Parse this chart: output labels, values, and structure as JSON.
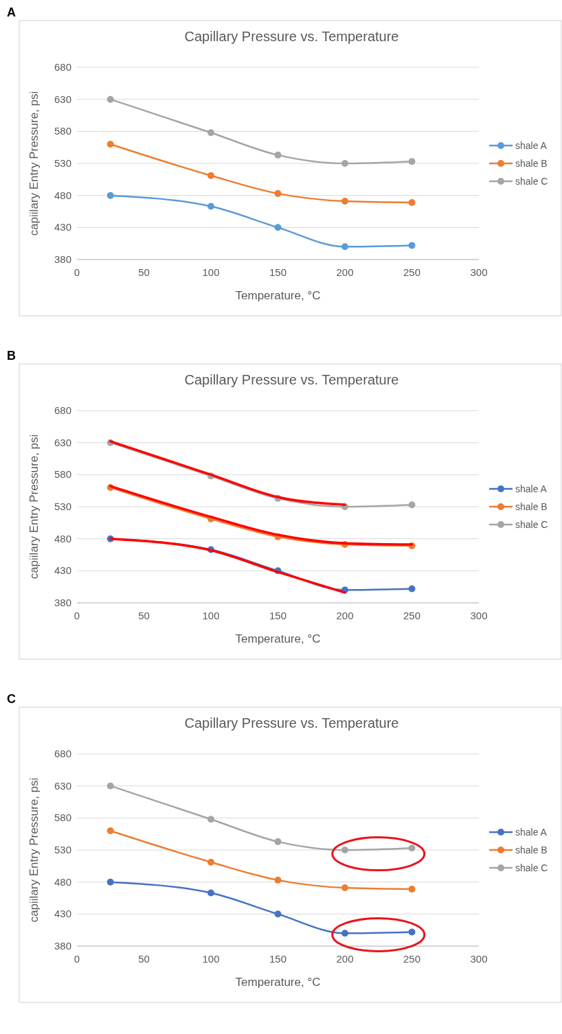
{
  "chart_data": [
    {
      "type": "line",
      "title": "Capillary Pressure vs. Temperature",
      "xlabel": "Temperature, °C",
      "ylabel": "capiilary Entry Pressure, psi",
      "annotations": [
        "A"
      ],
      "x": [
        25,
        100,
        150,
        200,
        250
      ],
      "xlim": [
        0,
        300
      ],
      "xticks": [
        0,
        50,
        100,
        150,
        200,
        250,
        300
      ],
      "ylim": [
        380,
        680
      ],
      "yticks": [
        380,
        430,
        480,
        530,
        580,
        630,
        680
      ],
      "grid": "y",
      "legend": "right",
      "marker": "circle",
      "line_style": "solid",
      "series": [
        {
          "name": "shale A",
          "color": "#5b9bd5",
          "values": [
            480,
            463,
            430,
            400,
            402
          ]
        },
        {
          "name": "shale B",
          "color": "#ed7d31",
          "values": [
            560,
            511,
            483,
            471,
            469
          ]
        },
        {
          "name": "shale C",
          "color": "#a5a5a5",
          "values": [
            630,
            578,
            543,
            530,
            533
          ]
        }
      ]
    },
    {
      "type": "line",
      "title": "Capillary Pressure vs. Temperature",
      "xlabel": "Temperature, °C",
      "ylabel": "capiilary Entry Pressure, psi",
      "annotations": [
        "B"
      ],
      "x": [
        25,
        100,
        150,
        200,
        250
      ],
      "xlim": [
        0,
        300
      ],
      "xticks": [
        0,
        50,
        100,
        150,
        200,
        250,
        300
      ],
      "ylim": [
        380,
        680
      ],
      "yticks": [
        380,
        430,
        480,
        530,
        580,
        630,
        680
      ],
      "grid": "y",
      "legend": "right",
      "marker": "circle",
      "line_style": "solid",
      "series": [
        {
          "name": "shale A",
          "color": "#4472c4",
          "values": [
            480,
            463,
            430,
            400,
            402
          ]
        },
        {
          "name": "shale B",
          "color": "#ed7d31",
          "values": [
            560,
            511,
            483,
            471,
            469
          ]
        },
        {
          "name": "shale C",
          "color": "#a5a5a5",
          "values": [
            630,
            578,
            543,
            530,
            533
          ]
        },
        {
          "type": "line",
          "color": "#ff0000",
          "marker": "none",
          "x": [
            25,
            100,
            150,
            200
          ],
          "values": [
            632,
            580,
            545,
            533
          ]
        },
        {
          "type": "line",
          "color": "#ff0000",
          "marker": "none",
          "x": [
            25,
            100,
            150,
            200,
            250
          ],
          "values": [
            562,
            514,
            486,
            473,
            471
          ]
        },
        {
          "type": "line",
          "color": "#ff0000",
          "marker": "none",
          "x": [
            25,
            100,
            150,
            200
          ],
          "values": [
            480,
            462,
            428,
            396
          ]
        }
      ]
    },
    {
      "type": "line",
      "title": "Capillary Pressure vs. Temperature",
      "xlabel": "Temperature, °C",
      "ylabel": "capiilary Entry Pressure, psi",
      "annotations": [
        "C"
      ],
      "x": [
        25,
        100,
        150,
        200,
        250
      ],
      "xlim": [
        0,
        300
      ],
      "xticks": [
        0,
        50,
        100,
        150,
        200,
        250,
        300
      ],
      "ylim": [
        380,
        680
      ],
      "yticks": [
        380,
        430,
        480,
        530,
        580,
        630,
        680
      ],
      "grid": "y",
      "legend": "right",
      "marker": "circle",
      "line_style": "solid",
      "series": [
        {
          "name": "shale A",
          "color": "#4472c4",
          "values": [
            480,
            463,
            430,
            400,
            402
          ]
        },
        {
          "name": "shale B",
          "color": "#ed7d31",
          "values": [
            560,
            511,
            483,
            471,
            469
          ]
        },
        {
          "name": "shale C",
          "color": "#a5a5a5",
          "values": [
            630,
            578,
            543,
            530,
            533
          ]
        }
      ]
    }
  ]
}
